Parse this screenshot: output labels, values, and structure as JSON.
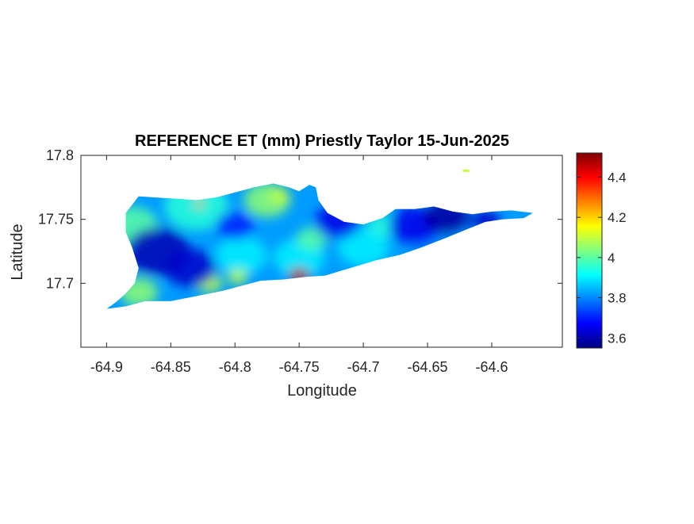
{
  "figure": {
    "title": "REFERENCE ET (mm) Priestly Taylor 15-Jun-2025",
    "xlabel": "Longitude",
    "ylabel": "Latitude"
  },
  "chart_data": {
    "type": "heatmap",
    "title": "REFERENCE ET (mm) Priestly Taylor 15-Jun-2025",
    "xlabel": "Longitude",
    "ylabel": "Latitude",
    "xlim": [
      -64.92,
      -64.545
    ],
    "ylim": [
      17.65,
      17.8
    ],
    "x_ticks": [
      -64.9,
      -64.85,
      -64.8,
      -64.75,
      -64.7,
      -64.65,
      -64.6
    ],
    "x_tick_labels": [
      "-64.9",
      "-64.85",
      "-64.8",
      "-64.75",
      "-64.7",
      "-64.65",
      "-64.6"
    ],
    "y_ticks": [
      17.7,
      17.75,
      17.8
    ],
    "y_tick_labels": [
      "17.7",
      "17.75",
      "17.8"
    ],
    "colorbar": {
      "colormap": "jet",
      "range": [
        3.55,
        4.52
      ],
      "ticks": [
        3.6,
        3.8,
        4.0,
        4.2,
        4.4
      ],
      "tick_labels": [
        "3.6",
        "3.8",
        "4",
        "4.2",
        "4.4"
      ]
    },
    "grid": false,
    "island_outline_lonlat": [
      [
        -64.9,
        17.68
      ],
      [
        -64.893,
        17.685
      ],
      [
        -64.885,
        17.692
      ],
      [
        -64.878,
        17.7
      ],
      [
        -64.875,
        17.712
      ],
      [
        -64.88,
        17.728
      ],
      [
        -64.885,
        17.74
      ],
      [
        -64.885,
        17.755
      ],
      [
        -64.875,
        17.768
      ],
      [
        -64.86,
        17.767
      ],
      [
        -64.845,
        17.766
      ],
      [
        -64.83,
        17.765
      ],
      [
        -64.815,
        17.767
      ],
      [
        -64.8,
        17.771
      ],
      [
        -64.785,
        17.775
      ],
      [
        -64.77,
        17.778
      ],
      [
        -64.758,
        17.775
      ],
      [
        -64.75,
        17.772
      ],
      [
        -64.742,
        17.777
      ],
      [
        -64.737,
        17.775
      ],
      [
        -64.735,
        17.765
      ],
      [
        -64.728,
        17.755
      ],
      [
        -64.715,
        17.748
      ],
      [
        -64.7,
        17.746
      ],
      [
        -64.685,
        17.751
      ],
      [
        -64.675,
        17.758
      ],
      [
        -64.66,
        17.758
      ],
      [
        -64.645,
        17.76
      ],
      [
        -64.63,
        17.756
      ],
      [
        -64.615,
        17.754
      ],
      [
        -64.6,
        17.756
      ],
      [
        -64.585,
        17.757
      ],
      [
        -64.568,
        17.755
      ],
      [
        -64.575,
        17.751
      ],
      [
        -64.592,
        17.75
      ],
      [
        -64.605,
        17.748
      ],
      [
        -64.62,
        17.742
      ],
      [
        -64.637,
        17.735
      ],
      [
        -64.655,
        17.728
      ],
      [
        -64.672,
        17.722
      ],
      [
        -64.69,
        17.718
      ],
      [
        -64.71,
        17.712
      ],
      [
        -64.73,
        17.706
      ],
      [
        -64.745,
        17.705
      ],
      [
        -64.762,
        17.703
      ],
      [
        -64.78,
        17.702
      ],
      [
        -64.795,
        17.698
      ],
      [
        -64.81,
        17.694
      ],
      [
        -64.83,
        17.69
      ],
      [
        -64.85,
        17.686
      ],
      [
        -64.87,
        17.686
      ],
      [
        -64.885,
        17.682
      ],
      [
        -64.9,
        17.68
      ]
    ],
    "value_blobs": [
      {
        "lon": -64.88,
        "lat": 17.745,
        "value": 4.0,
        "r": 0.02
      },
      {
        "lon": -64.83,
        "lat": 17.76,
        "value": 3.95,
        "r": 0.025
      },
      {
        "lon": -64.775,
        "lat": 17.765,
        "value": 4.05,
        "r": 0.018
      },
      {
        "lon": -64.795,
        "lat": 17.722,
        "value": 3.9,
        "r": 0.02
      },
      {
        "lon": -64.75,
        "lat": 17.72,
        "value": 3.9,
        "r": 0.02
      },
      {
        "lon": -64.7,
        "lat": 17.728,
        "value": 3.9,
        "r": 0.02
      },
      {
        "lon": -64.64,
        "lat": 17.74,
        "value": 3.8,
        "r": 0.03
      },
      {
        "lon": -64.685,
        "lat": 17.745,
        "value": 3.95,
        "r": 0.012
      },
      {
        "lon": -64.875,
        "lat": 17.693,
        "value": 4.05,
        "r": 0.015
      },
      {
        "lon": -64.82,
        "lat": 17.7,
        "value": 4.1,
        "r": 0.01
      },
      {
        "lon": -64.74,
        "lat": 17.735,
        "value": 4.0,
        "r": 0.012
      },
      {
        "lon": -64.86,
        "lat": 17.725,
        "value": 3.6,
        "r": 0.025
      },
      {
        "lon": -64.835,
        "lat": 17.712,
        "value": 3.62,
        "r": 0.02
      },
      {
        "lon": -64.8,
        "lat": 17.745,
        "value": 3.7,
        "r": 0.015
      },
      {
        "lon": -64.72,
        "lat": 17.748,
        "value": 3.65,
        "r": 0.018
      },
      {
        "lon": -64.66,
        "lat": 17.745,
        "value": 3.65,
        "r": 0.02
      },
      {
        "lon": -64.635,
        "lat": 17.752,
        "value": 3.58,
        "r": 0.018
      },
      {
        "lon": -64.605,
        "lat": 17.748,
        "value": 3.62,
        "r": 0.012
      },
      {
        "lon": -64.75,
        "lat": 17.706,
        "value": 4.45,
        "r": 0.008
      },
      {
        "lon": -64.828,
        "lat": 17.762,
        "value": 4.25,
        "r": 0.004
      },
      {
        "lon": -64.798,
        "lat": 17.705,
        "value": 4.1,
        "r": 0.008
      },
      {
        "lon": -64.765,
        "lat": 17.768,
        "value": 4.1,
        "r": 0.008
      }
    ],
    "islet": {
      "lon": -64.62,
      "lat": 17.788,
      "value": 4.1
    }
  }
}
